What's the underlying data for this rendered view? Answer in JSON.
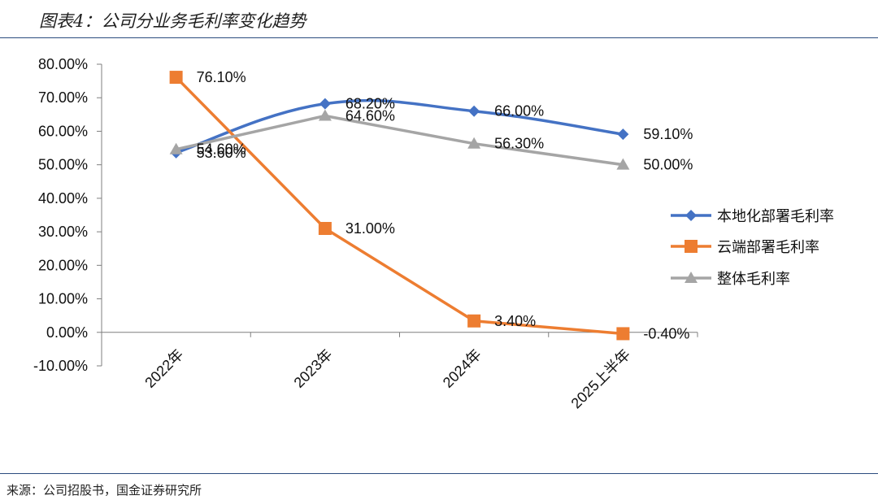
{
  "figure": {
    "title": "图表4：公司分业务毛利率变化趋势",
    "source": "来源：公司招股书，国金证券研究所"
  },
  "chart_data": {
    "type": "line",
    "title": "",
    "xlabel": "",
    "ylabel": "",
    "categories": [
      "2022年",
      "2023年",
      "2024年",
      "2025上半年"
    ],
    "ylim": [
      -10,
      80
    ],
    "y_ticks": [
      "80.00%",
      "70.00%",
      "60.00%",
      "50.00%",
      "40.00%",
      "30.00%",
      "20.00%",
      "10.00%",
      "0.00%",
      "-10.00%"
    ],
    "legend_position": "right",
    "grid": false,
    "series": [
      {
        "name": "本地化部署毛利率",
        "values": [
          53.6,
          68.2,
          66.0,
          59.1
        ],
        "labels": [
          "53.60%",
          "68.20%",
          "66.00%",
          "59.10%"
        ],
        "color": "#4472c4",
        "marker": "diamond",
        "smooth": true
      },
      {
        "name": "云端部署毛利率",
        "values": [
          76.1,
          31.0,
          3.4,
          -0.4
        ],
        "labels": [
          "76.10%",
          "31.00%",
          "3.40%",
          "-0.40%"
        ],
        "color": "#ed7d31",
        "marker": "square",
        "smooth": false
      },
      {
        "name": "整体毛利率",
        "values": [
          54.6,
          64.6,
          56.3,
          50.0
        ],
        "labels": [
          "54.60%",
          "64.60%",
          "56.30%",
          "50.00%"
        ],
        "color": "#a5a5a5",
        "marker": "triangle",
        "smooth": false
      }
    ]
  }
}
